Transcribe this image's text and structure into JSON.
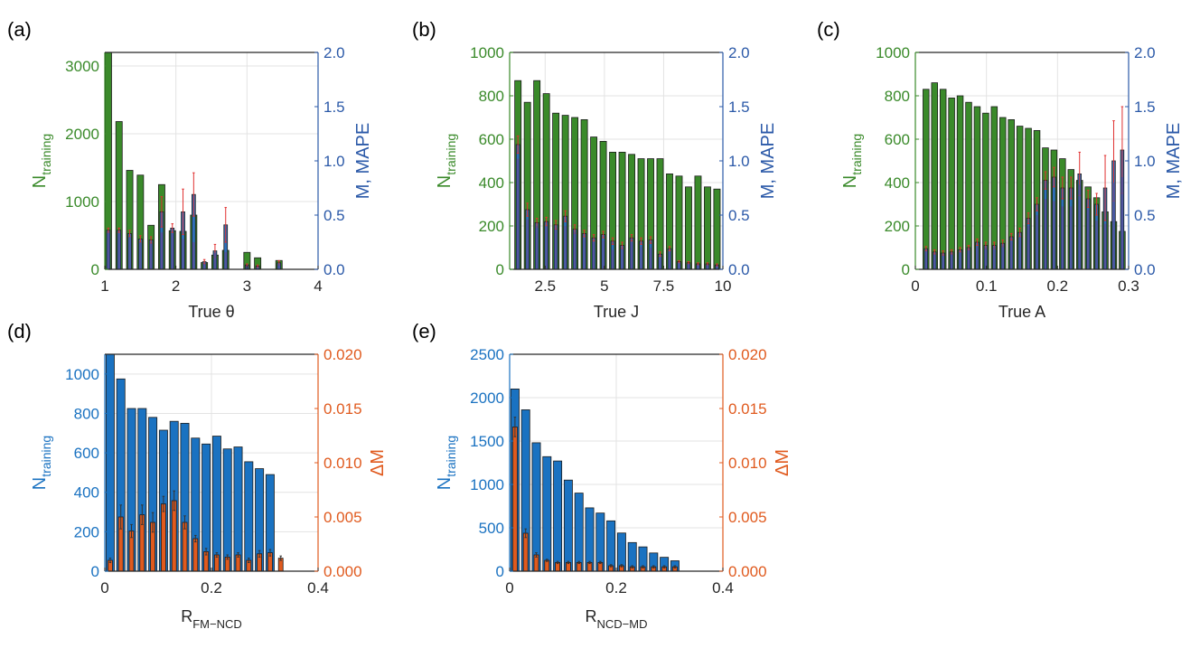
{
  "colors": {
    "green": "#3a8a2a",
    "blue_bar": "#2f6fb8",
    "bright_blue": "#1a72c1",
    "orange": "#e05a1e",
    "red_err": "#e03030",
    "axis_blue": "#2b59a8"
  },
  "chart_data": [
    {
      "panel": "(a)",
      "type": "bar",
      "grid": true,
      "xlabel": "True θ",
      "xlim": [
        1,
        4
      ],
      "xticks": [
        1,
        2,
        3,
        4
      ],
      "ylabel_left_main": "N",
      "ylabel_left_sub": "training",
      "ylim_left": [
        0,
        3200
      ],
      "yticks_left": [
        0,
        1000,
        2000,
        3000
      ],
      "ylabel_right": "M, MAPE",
      "ylim_right": [
        0,
        2.0
      ],
      "yticks_right": [
        "0.0",
        "0.5",
        "1.0",
        "1.5",
        "2.0"
      ],
      "bar_width": 0.09,
      "series": [
        {
          "name": "N",
          "axis": "left",
          "role": "wide",
          "x": [
            1.05,
            1.2,
            1.35,
            1.5,
            1.65,
            1.8,
            1.95,
            2.1,
            2.25,
            2.4,
            2.55,
            2.7,
            2.85,
            3.0,
            3.15,
            3.3,
            3.45
          ],
          "values": [
            3200,
            2180,
            1460,
            1390,
            650,
            1250,
            570,
            560,
            800,
            100,
            210,
            280,
            0,
            250,
            170,
            0,
            130
          ]
        },
        {
          "name": "M",
          "axis": "right",
          "role": "narrow",
          "x": [
            1.05,
            1.2,
            1.35,
            1.5,
            1.65,
            1.8,
            1.95,
            2.1,
            2.25,
            2.4,
            2.55,
            2.7,
            2.85,
            3.0,
            3.15,
            3.3,
            3.45
          ],
          "values": [
            0.36,
            0.36,
            0.33,
            0.28,
            0.27,
            0.53,
            0.38,
            0.53,
            0.69,
            0.07,
            0.17,
            0.41,
            0,
            0.04,
            0.03,
            0,
            0.06
          ],
          "errors": [
            0.02,
            0.02,
            0.03,
            0.03,
            0.03,
            0.14,
            0.04,
            0.21,
            0.2,
            0.02,
            0.06,
            0.16,
            0,
            0.01,
            0.01,
            0,
            0.02
          ]
        },
        {
          "name": "MAPE",
          "axis": "right",
          "role": "mid",
          "x": [
            1.05,
            1.2,
            1.35,
            1.5,
            1.65,
            1.8,
            1.95,
            2.1,
            2.25,
            2.4,
            2.55,
            2.7,
            2.85,
            3.0,
            3.15,
            3.3,
            3.45
          ],
          "values": [
            0.34,
            0.33,
            0.3,
            0.25,
            0.24,
            0.34,
            0.33,
            0.28,
            0.25,
            0.05,
            0.15,
            0.16,
            0,
            0.03,
            0.02,
            0,
            0.05
          ]
        }
      ]
    },
    {
      "panel": "(b)",
      "type": "bar",
      "grid": true,
      "xlabel": "True J",
      "xlim": [
        1,
        10
      ],
      "xticks": [
        2.5,
        5,
        7.5,
        10
      ],
      "ylabel_left_main": "N",
      "ylabel_left_sub": "training",
      "ylim_left": [
        0,
        1000
      ],
      "yticks_left": [
        0,
        200,
        400,
        600,
        800,
        1000
      ],
      "ylabel_right": "M, MAPE",
      "ylim_right": [
        0,
        2.0
      ],
      "yticks_right": [
        "0.0",
        "0.5",
        "1.0",
        "1.5",
        "2.0"
      ],
      "bar_width": 0.27,
      "series": [
        {
          "name": "N",
          "axis": "left",
          "role": "wide",
          "x": [
            1.35,
            1.75,
            2.15,
            2.55,
            2.95,
            3.35,
            3.75,
            4.15,
            4.55,
            4.95,
            5.35,
            5.75,
            6.15,
            6.55,
            6.95,
            7.35,
            7.75,
            8.15,
            8.55,
            8.95,
            9.35,
            9.75
          ],
          "values": [
            870,
            770,
            870,
            810,
            720,
            710,
            700,
            690,
            610,
            590,
            540,
            540,
            530,
            510,
            510,
            510,
            440,
            430,
            380,
            430,
            380,
            370
          ]
        },
        {
          "name": "M",
          "axis": "right",
          "role": "narrow",
          "x": [
            1.35,
            1.75,
            2.15,
            2.55,
            2.95,
            3.35,
            3.75,
            4.15,
            4.55,
            4.95,
            5.35,
            5.75,
            6.15,
            6.55,
            6.95,
            7.35,
            7.75,
            8.15,
            8.55,
            8.95,
            9.35,
            9.75
          ],
          "values": [
            1.15,
            0.55,
            0.43,
            0.44,
            0.41,
            0.49,
            0.37,
            0.33,
            0.29,
            0.32,
            0.26,
            0.22,
            0.29,
            0.26,
            0.27,
            0.14,
            0.19,
            0.07,
            0.06,
            0.05,
            0.05,
            0.04
          ],
          "errors": [
            0.08,
            0.06,
            0.04,
            0.04,
            0.04,
            0.05,
            0.04,
            0.03,
            0.03,
            0.03,
            0.03,
            0.03,
            0.03,
            0.03,
            0.03,
            0.02,
            0.02,
            0.01,
            0.01,
            0.01,
            0.01,
            0.01
          ]
        },
        {
          "name": "MAPE",
          "axis": "right",
          "role": "mid",
          "x": [
            1.35,
            1.75,
            2.15,
            2.55,
            2.95,
            3.35,
            3.75,
            4.15,
            4.55,
            4.95,
            5.35,
            5.75,
            6.15,
            6.55,
            6.95,
            7.35,
            7.75,
            8.15,
            8.55,
            8.95,
            9.35,
            9.75
          ],
          "values": [
            1.02,
            0.46,
            0.4,
            0.4,
            0.37,
            0.4,
            0.34,
            0.29,
            0.25,
            0.27,
            0.18,
            0.19,
            0.25,
            0.21,
            0.2,
            0.11,
            0.16,
            0.06,
            0.05,
            0.04,
            0.04,
            0.03
          ]
        }
      ]
    },
    {
      "panel": "(c)",
      "type": "bar",
      "grid": true,
      "xlabel": "True A",
      "xlim": [
        0,
        0.3
      ],
      "xticks": [
        "0",
        "0.1",
        "0.2",
        "0.3"
      ],
      "xtick_values": [
        0,
        0.1,
        0.2,
        0.3
      ],
      "ylabel_left_main": "N",
      "ylabel_left_sub": "training",
      "ylim_left": [
        0,
        1000
      ],
      "yticks_left": [
        0,
        200,
        400,
        600,
        800,
        1000
      ],
      "ylabel_right": "M, MAPE",
      "ylim_right": [
        0,
        2.0
      ],
      "yticks_right": [
        "0.0",
        "0.5",
        "1.0",
        "1.5",
        "2.0"
      ],
      "bar_width": 0.0085,
      "series": [
        {
          "name": "N",
          "axis": "left",
          "role": "wide",
          "x": [
            0.015,
            0.027,
            0.039,
            0.051,
            0.063,
            0.075,
            0.087,
            0.099,
            0.111,
            0.123,
            0.135,
            0.147,
            0.159,
            0.171,
            0.183,
            0.195,
            0.207,
            0.219,
            0.231,
            0.243,
            0.255,
            0.267,
            0.279,
            0.291
          ],
          "values": [
            830,
            860,
            830,
            790,
            800,
            770,
            750,
            720,
            750,
            700,
            690,
            660,
            650,
            640,
            560,
            550,
            510,
            460,
            410,
            380,
            330,
            265,
            220,
            175
          ]
        },
        {
          "name": "M",
          "axis": "right",
          "role": "narrow",
          "x": [
            0.015,
            0.027,
            0.039,
            0.051,
            0.063,
            0.075,
            0.087,
            0.099,
            0.111,
            0.123,
            0.135,
            0.147,
            0.159,
            0.171,
            0.183,
            0.195,
            0.207,
            0.219,
            0.231,
            0.243,
            0.255,
            0.267,
            0.279,
            0.291
          ],
          "values": [
            0.19,
            0.16,
            0.15,
            0.16,
            0.18,
            0.2,
            0.25,
            0.22,
            0.22,
            0.24,
            0.3,
            0.34,
            0.47,
            0.6,
            0.82,
            0.85,
            0.75,
            0.75,
            0.88,
            0.65,
            0.6,
            0.75,
            1.0,
            1.1
          ],
          "errors": [
            0.02,
            0.02,
            0.02,
            0.02,
            0.02,
            0.02,
            0.03,
            0.03,
            0.03,
            0.03,
            0.03,
            0.04,
            0.05,
            0.06,
            0.08,
            0.09,
            0.1,
            0.1,
            0.2,
            0.08,
            0.1,
            0.3,
            0.37,
            0.4
          ]
        },
        {
          "name": "MAPE",
          "axis": "right",
          "role": "mid",
          "x": [
            0.015,
            0.027,
            0.039,
            0.051,
            0.063,
            0.075,
            0.087,
            0.099,
            0.111,
            0.123,
            0.135,
            0.147,
            0.159,
            0.171,
            0.183,
            0.195,
            0.207,
            0.219,
            0.231,
            0.243,
            0.255,
            0.267,
            0.279,
            0.291
          ],
          "values": [
            0.17,
            0.14,
            0.13,
            0.14,
            0.16,
            0.18,
            0.21,
            0.2,
            0.2,
            0.22,
            0.26,
            0.3,
            0.4,
            0.5,
            0.65,
            0.63,
            0.58,
            0.58,
            0.78,
            0.55,
            0.45,
            0.42,
            0.8,
            0.85
          ]
        }
      ]
    },
    {
      "panel": "(d)",
      "type": "bar",
      "grid": true,
      "xlabel_main": "R",
      "xlabel_sub": "FM−NCD",
      "xlim": [
        0,
        0.4
      ],
      "xticks": [
        "0",
        "0.2",
        "0.4"
      ],
      "xtick_values": [
        0,
        0.2,
        0.4
      ],
      "ylabel_left_main": "N",
      "ylabel_left_sub": "training",
      "ylim_left": [
        0,
        1100
      ],
      "yticks_left": [
        0,
        200,
        400,
        600,
        800,
        1000
      ],
      "ylabel_right": "ΔM",
      "ylim_right": [
        0,
        0.02
      ],
      "yticks_right": [
        "0.000",
        "0.005",
        "0.010",
        "0.015",
        "0.020"
      ],
      "bar_width": 0.0155,
      "series": [
        {
          "name": "N",
          "axis": "left",
          "role": "wide",
          "x": [
            0.01,
            0.03,
            0.05,
            0.07,
            0.09,
            0.11,
            0.13,
            0.15,
            0.17,
            0.19,
            0.21,
            0.23,
            0.25,
            0.27,
            0.29,
            0.31,
            0.33,
            0.35,
            0.37,
            0.39
          ],
          "values": [
            1100,
            975,
            825,
            825,
            780,
            715,
            760,
            750,
            675,
            645,
            685,
            620,
            630,
            555,
            520,
            490,
            0,
            0,
            0,
            0
          ]
        },
        {
          "name": "ΔM",
          "axis": "right",
          "role": "narrow",
          "x": [
            0.01,
            0.03,
            0.05,
            0.07,
            0.09,
            0.11,
            0.13,
            0.15,
            0.17,
            0.19,
            0.21,
            0.23,
            0.25,
            0.27,
            0.29,
            0.31,
            0.33,
            0.35,
            0.37,
            0.39
          ],
          "values": [
            0.001,
            0.005,
            0.0037,
            0.0052,
            0.0045,
            0.0062,
            0.0065,
            0.0045,
            0.003,
            0.0018,
            0.0015,
            0.0013,
            0.0015,
            0.001,
            0.0016,
            0.0017,
            0.0012,
            0,
            0,
            0
          ],
          "errors": [
            0.0002,
            0.0011,
            0.0006,
            0.0009,
            0.0009,
            0.0007,
            0.0009,
            0.0006,
            0.0003,
            0.0003,
            0.0002,
            0.0002,
            0.0002,
            0.0002,
            0.0003,
            0.0003,
            0.0002,
            0,
            0,
            0
          ]
        }
      ]
    },
    {
      "panel": "(e)",
      "type": "bar",
      "grid": true,
      "xlabel_main": "R",
      "xlabel_sub": "NCD−MD",
      "xlim": [
        0,
        0.4
      ],
      "xticks": [
        "0",
        "0.2",
        "0.4"
      ],
      "xtick_values": [
        0,
        0.2,
        0.4
      ],
      "ylabel_left_main": "N",
      "ylabel_left_sub": "training",
      "ylim_left": [
        0,
        2500
      ],
      "yticks_left": [
        0,
        500,
        1000,
        1500,
        2000,
        2500
      ],
      "ylabel_right": "ΔM",
      "ylim_right": [
        0,
        0.02
      ],
      "yticks_right": [
        "0.000",
        "0.005",
        "0.010",
        "0.015",
        "0.020"
      ],
      "bar_width": 0.0155,
      "series": [
        {
          "name": "N",
          "axis": "left",
          "role": "wide",
          "x": [
            0.01,
            0.03,
            0.05,
            0.07,
            0.09,
            0.11,
            0.13,
            0.15,
            0.17,
            0.19,
            0.21,
            0.23,
            0.25,
            0.27,
            0.29,
            0.31,
            0.33,
            0.35,
            0.37,
            0.39
          ],
          "values": [
            2100,
            1860,
            1480,
            1320,
            1270,
            1050,
            900,
            730,
            670,
            580,
            440,
            330,
            280,
            210,
            160,
            120,
            0,
            0,
            0,
            0
          ]
        },
        {
          "name": "ΔM",
          "axis": "right",
          "role": "narrow",
          "x": [
            0.01,
            0.03,
            0.05,
            0.07,
            0.09,
            0.11,
            0.13,
            0.15,
            0.17,
            0.19,
            0.21,
            0.23,
            0.25,
            0.27,
            0.29,
            0.31,
            0.33,
            0.35,
            0.37,
            0.39
          ],
          "values": [
            0.0133,
            0.0035,
            0.0015,
            0.001,
            0.0008,
            0.0008,
            0.0008,
            0.0008,
            0.0008,
            0.0005,
            0.0005,
            0.0004,
            0.0004,
            0.0004,
            0.0004,
            0.0004,
            0,
            0,
            0,
            0
          ],
          "errors": [
            0.0009,
            0.0004,
            0.0002,
            0.0001,
            0.0001,
            0.0001,
            0.0001,
            0.0001,
            0.0001,
            0.0001,
            0.0001,
            0.0001,
            0.0001,
            0.0001,
            0.0001,
            0.0001,
            0,
            0,
            0,
            0
          ]
        }
      ]
    }
  ]
}
